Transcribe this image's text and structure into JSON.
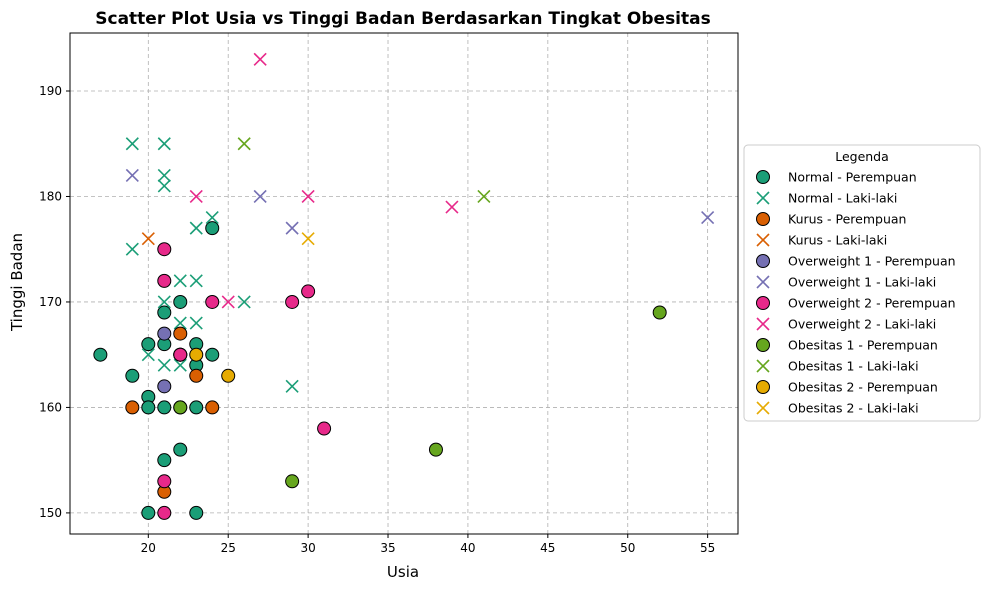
{
  "chart_data": {
    "type": "scatter",
    "title": "Scatter Plot Usia vs Tinggi Badan Berdasarkan Tingkat Obesitas",
    "xlabel": "Usia",
    "ylabel": "Tinggi Badan",
    "xlim": [
      15.1,
      56.9
    ],
    "ylim": [
      148,
      195.5
    ],
    "xticks": [
      20,
      25,
      30,
      35,
      40,
      45,
      50,
      55
    ],
    "yticks": [
      150,
      160,
      170,
      180,
      190
    ],
    "grid": true,
    "legend": {
      "title": "Legenda",
      "placement": "right"
    },
    "series": [
      {
        "name": "Normal - Perempuan",
        "color": "#1b9e77",
        "marker": "circle",
        "points": [
          [
            17,
            165
          ],
          [
            19,
            163
          ],
          [
            20,
            166
          ],
          [
            20,
            161
          ],
          [
            20,
            160
          ],
          [
            20,
            150
          ],
          [
            21,
            169
          ],
          [
            21,
            166
          ],
          [
            21,
            160
          ],
          [
            21,
            155
          ],
          [
            22,
            170
          ],
          [
            22,
            165
          ],
          [
            22,
            160
          ],
          [
            22,
            156
          ],
          [
            23,
            166
          ],
          [
            23,
            164
          ],
          [
            23,
            160
          ],
          [
            23,
            150
          ],
          [
            24,
            177
          ],
          [
            24,
            165
          ]
        ]
      },
      {
        "name": "Normal - Laki-laki",
        "color": "#1b9e77",
        "marker": "x",
        "points": [
          [
            19,
            185
          ],
          [
            19,
            175
          ],
          [
            20,
            165
          ],
          [
            21,
            185
          ],
          [
            21,
            182
          ],
          [
            21,
            181
          ],
          [
            21,
            170
          ],
          [
            21,
            164
          ],
          [
            22,
            172
          ],
          [
            22,
            168
          ],
          [
            22,
            164
          ],
          [
            23,
            177
          ],
          [
            23,
            172
          ],
          [
            23,
            168
          ],
          [
            24,
            178
          ],
          [
            26,
            170
          ],
          [
            29,
            162
          ]
        ]
      },
      {
        "name": "Kurus - Perempuan",
        "color": "#d95f02",
        "marker": "circle",
        "points": [
          [
            19,
            160
          ],
          [
            21,
            152
          ],
          [
            22,
            167
          ],
          [
            22,
            165
          ],
          [
            23,
            163
          ],
          [
            24,
            160
          ]
        ]
      },
      {
        "name": "Kurus - Laki-laki",
        "color": "#d95f02",
        "marker": "x",
        "points": [
          [
            20,
            176
          ]
        ]
      },
      {
        "name": "Overweight 1 - Perempuan",
        "color": "#7570b3",
        "marker": "circle",
        "points": [
          [
            21,
            167
          ],
          [
            21,
            162
          ]
        ]
      },
      {
        "name": "Overweight 1 - Laki-laki",
        "color": "#7570b3",
        "marker": "x",
        "points": [
          [
            19,
            182
          ],
          [
            27,
            180
          ],
          [
            29,
            177
          ],
          [
            55,
            178
          ]
        ]
      },
      {
        "name": "Overweight 2 - Perempuan",
        "color": "#e7298a",
        "marker": "circle",
        "points": [
          [
            21,
            175
          ],
          [
            21,
            172
          ],
          [
            21,
            153
          ],
          [
            21,
            150
          ],
          [
            22,
            165
          ],
          [
            24,
            170
          ],
          [
            29,
            170
          ],
          [
            30,
            171
          ],
          [
            31,
            158
          ]
        ]
      },
      {
        "name": "Overweight 2 - Laki-laki",
        "color": "#e7298a",
        "marker": "x",
        "points": [
          [
            23,
            180
          ],
          [
            25,
            170
          ],
          [
            27,
            193
          ],
          [
            30,
            180
          ],
          [
            39,
            179
          ]
        ]
      },
      {
        "name": "Obesitas 1 - Perempuan",
        "color": "#66a61e",
        "marker": "circle",
        "points": [
          [
            22,
            160
          ],
          [
            29,
            153
          ],
          [
            38,
            156
          ],
          [
            52,
            169
          ]
        ]
      },
      {
        "name": "Obesitas 1 - Laki-laki",
        "color": "#66a61e",
        "marker": "x",
        "points": [
          [
            26,
            185
          ],
          [
            41,
            180
          ]
        ]
      },
      {
        "name": "Obesitas 2 - Perempuan",
        "color": "#e6ab02",
        "marker": "circle",
        "points": [
          [
            23,
            165
          ],
          [
            25,
            163
          ]
        ]
      },
      {
        "name": "Obesitas 2 - Laki-laki",
        "color": "#e6ab02",
        "marker": "x",
        "points": [
          [
            30,
            176
          ]
        ]
      }
    ]
  }
}
